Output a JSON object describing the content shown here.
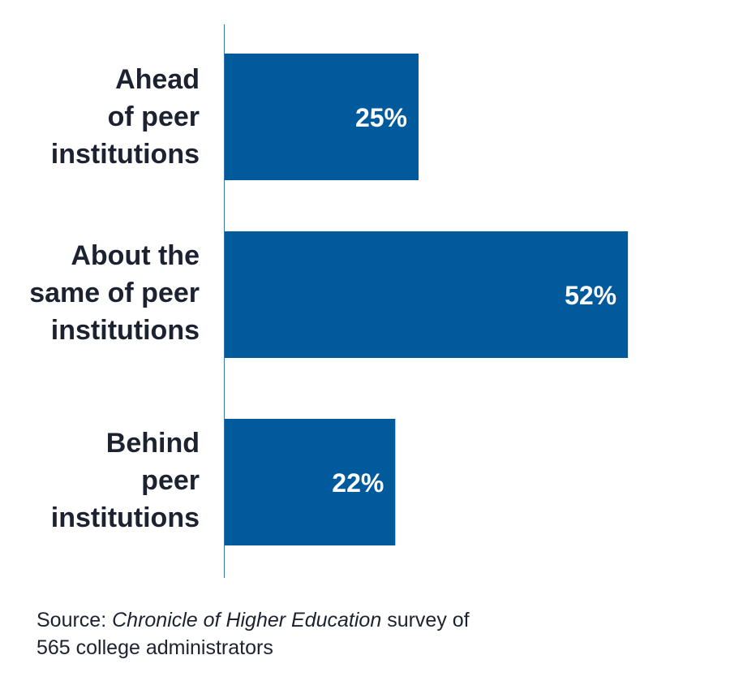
{
  "chart_data": {
    "type": "bar",
    "orientation": "horizontal",
    "categories": [
      "Ahead\nof peer\ninstitutions",
      "About the\nsame of peer\ninstitutions",
      "Behind\npeer\ninstitutions"
    ],
    "values": [
      25,
      52,
      22
    ],
    "data_labels": [
      "25%",
      "52%",
      "22%"
    ],
    "unit": "%",
    "xlim": [
      0,
      100
    ],
    "grid": false,
    "legend": "none",
    "bar_color": "#005a9c"
  },
  "source": {
    "prefix": "Source: ",
    "title": "Chronicle of Higher Education",
    "suffix": " survey of",
    "line2": "565 college administrators"
  }
}
